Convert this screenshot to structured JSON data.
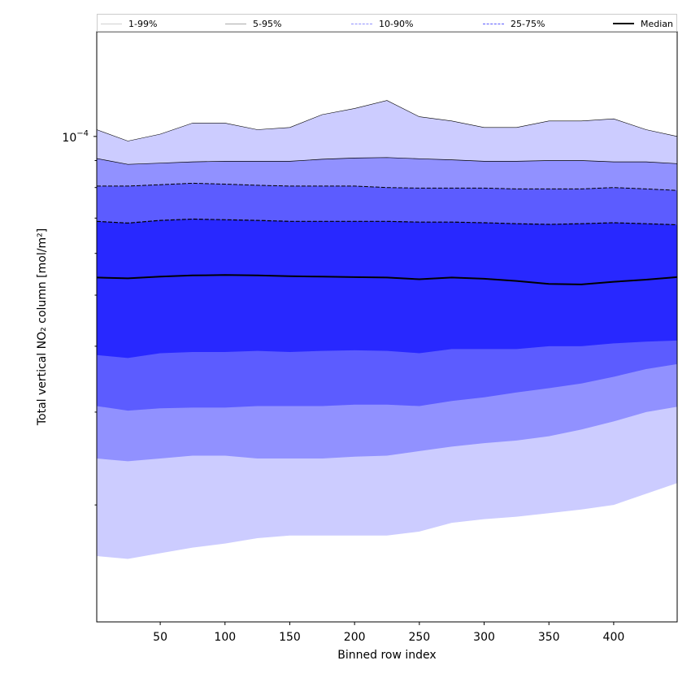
{
  "chart_data": {
    "type": "area",
    "xlabel": "Binned row index",
    "ylabel": "Total vertical NO₂ column [mol/m²]",
    "xlim": [
      1,
      449
    ],
    "ylim": [
      1.2e-05,
      0.000158
    ],
    "yscale": "log",
    "xticks": [
      50,
      100,
      150,
      200,
      250,
      300,
      350,
      400
    ],
    "ytick_label": {
      "value": 0.0001,
      "base": "10",
      "exponent": "−4"
    },
    "grid": false,
    "legend_position": "top",
    "x": [
      1,
      25,
      50,
      75,
      100,
      125,
      150,
      175,
      200,
      225,
      250,
      275,
      300,
      325,
      350,
      375,
      400,
      425,
      449
    ],
    "series": [
      {
        "name": "1-99%",
        "style": "solid",
        "color": "#ccccff",
        "lower": [
          1.6e-05,
          1.58e-05,
          1.62e-05,
          1.66e-05,
          1.69e-05,
          1.73e-05,
          1.75e-05,
          1.75e-05,
          1.75e-05,
          1.75e-05,
          1.78e-05,
          1.85e-05,
          1.88e-05,
          1.9e-05,
          1.93e-05,
          1.96e-05,
          2e-05,
          2.1e-05,
          2.2e-05
        ],
        "upper": [
          0.000103,
          9.8e-05,
          0.000101,
          0.000106,
          0.000106,
          0.000103,
          0.000104,
          0.00011,
          0.000113,
          0.000117,
          0.000109,
          0.000107,
          0.000104,
          0.000104,
          0.000107,
          0.000107,
          0.000108,
          0.000103,
          0.0001
        ]
      },
      {
        "name": "5-95%",
        "style": "solid",
        "color": "#9191ff",
        "lower": [
          2.45e-05,
          2.42e-05,
          2.45e-05,
          2.48e-05,
          2.48e-05,
          2.45e-05,
          2.45e-05,
          2.45e-05,
          2.47e-05,
          2.48e-05,
          2.53e-05,
          2.58e-05,
          2.62e-05,
          2.65e-05,
          2.7e-05,
          2.78e-05,
          2.88e-05,
          3e-05,
          3.07e-05
        ]
      },
      {
        "name": "10-90%",
        "style": "dashed",
        "color": "#5c5cff",
        "lower": [
          3.08e-05,
          3.02e-05,
          3.05e-05,
          3.06e-05,
          3.06e-05,
          3.08e-05,
          3.08e-05,
          3.08e-05,
          3.1e-05,
          3.1e-05,
          3.08e-05,
          3.15e-05,
          3.2e-05,
          3.27e-05,
          3.33e-05,
          3.4e-05,
          3.5e-05,
          3.62e-05,
          3.7e-05
        ],
        "upper": [
          9.08e-05,
          8.85e-05,
          8.9e-05,
          8.95e-05,
          8.97e-05,
          8.97e-05,
          8.97e-05,
          9.05e-05,
          9.1e-05,
          9.12e-05,
          9.07e-05,
          9.03e-05,
          8.97e-05,
          8.97e-05,
          9e-05,
          9e-05,
          8.95e-05,
          8.95e-05,
          8.88e-05
        ]
      },
      {
        "name": "25-75%",
        "style": "dashed",
        "color": "#2828ff",
        "lower": [
          3.85e-05,
          3.8e-05,
          3.88e-05,
          3.9e-05,
          3.9e-05,
          3.92e-05,
          3.9e-05,
          3.92e-05,
          3.93e-05,
          3.92e-05,
          3.88e-05,
          3.95e-05,
          3.95e-05,
          3.95e-05,
          4e-05,
          4e-05,
          4.05e-05,
          4.08e-05,
          4.1e-05
        ],
        "upper": [
          8.05e-05,
          8.05e-05,
          8.1e-05,
          8.15e-05,
          8.12e-05,
          8.08e-05,
          8.05e-05,
          8.05e-05,
          8.05e-05,
          8e-05,
          7.98e-05,
          7.98e-05,
          7.98e-05,
          7.95e-05,
          7.95e-05,
          7.95e-05,
          8e-05,
          7.95e-05,
          7.9e-05
        ]
      },
      {
        "name": "Median",
        "style": "solid",
        "color": "#000000",
        "values": [
          5.4e-05,
          5.38e-05,
          5.42e-05,
          5.45e-05,
          5.46e-05,
          5.45e-05,
          5.43e-05,
          5.42e-05,
          5.41e-05,
          5.4e-05,
          5.36e-05,
          5.4e-05,
          5.37e-05,
          5.32e-05,
          5.25e-05,
          5.24e-05,
          5.3e-05,
          5.35e-05,
          5.41e-05
        ]
      }
    ],
    "band_upper_75_90": [
      6.9e-05,
      6.85e-05,
      6.93e-05,
      6.97e-05,
      6.95e-05,
      6.93e-05,
      6.9e-05,
      6.9e-05,
      6.9e-05,
      6.9e-05,
      6.88e-05,
      6.88e-05,
      6.86e-05,
      6.83e-05,
      6.81e-05,
      6.83e-05,
      6.86e-05,
      6.83e-05,
      6.8e-05
    ]
  }
}
